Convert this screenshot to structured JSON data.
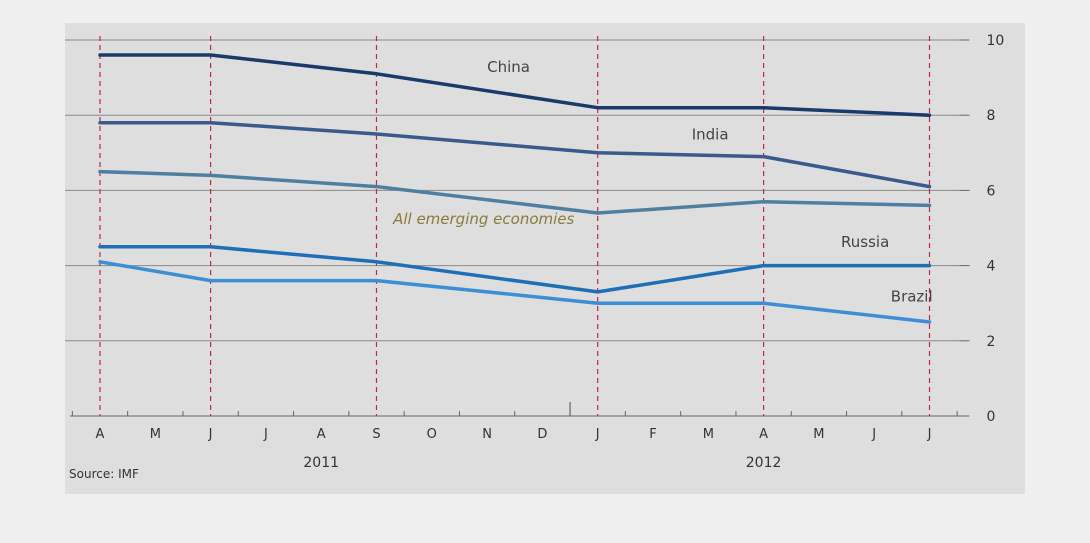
{
  "chart_data": {
    "type": "line",
    "title": "",
    "xlabel": "",
    "ylabel": "",
    "ylim": [
      0,
      10
    ],
    "yticks": [
      0,
      2,
      4,
      6,
      8,
      10
    ],
    "y_axis_side": "right",
    "months": [
      "A",
      "M",
      "J",
      "J",
      "A",
      "S",
      "O",
      "N",
      "D",
      "J",
      "F",
      "M",
      "A",
      "M",
      "J",
      "J"
    ],
    "years": [
      {
        "label": "2011",
        "month_index": 4
      },
      {
        "label": "2012",
        "month_index": 12
      }
    ],
    "forecast_markers": [
      0,
      2,
      5,
      9,
      12,
      15
    ],
    "year_divider_index": 8.5,
    "grid": true,
    "series": [
      {
        "name": "China",
        "color": "#1a3a6a",
        "points": [
          [
            0,
            9.6
          ],
          [
            2,
            9.6
          ],
          [
            5,
            9.1
          ],
          [
            9,
            8.2
          ],
          [
            12,
            8.2
          ],
          [
            15,
            8.0
          ]
        ]
      },
      {
        "name": "India",
        "color": "#3a5a8c",
        "points": [
          [
            0,
            7.8
          ],
          [
            2,
            7.8
          ],
          [
            5,
            7.5
          ],
          [
            9,
            7.0
          ],
          [
            12,
            6.9
          ],
          [
            15,
            6.1
          ]
        ]
      },
      {
        "name": "All emerging economies",
        "color": "#4f7fa0",
        "points": [
          [
            0,
            6.5
          ],
          [
            2,
            6.4
          ],
          [
            5,
            6.1
          ],
          [
            9,
            5.4
          ],
          [
            12,
            5.7
          ],
          [
            15,
            5.6
          ]
        ]
      },
      {
        "name": "Russia",
        "color": "#1f6fb8",
        "points": [
          [
            0,
            4.5
          ],
          [
            2,
            4.5
          ],
          [
            5,
            4.1
          ],
          [
            9,
            3.3
          ],
          [
            12,
            4.0
          ],
          [
            15,
            4.0
          ]
        ]
      },
      {
        "name": "Brazil",
        "color": "#3c8ed6",
        "points": [
          [
            0,
            4.1
          ],
          [
            2,
            3.6
          ],
          [
            5,
            3.6
          ],
          [
            9,
            3.0
          ],
          [
            12,
            3.0
          ],
          [
            15,
            2.5
          ]
        ]
      }
    ],
    "labels": [
      {
        "series": "China",
        "text": "China",
        "month_pos": 7.0,
        "value": 9.15,
        "italic": false
      },
      {
        "series": "India",
        "text": "India",
        "month_pos": 10.7,
        "value": 7.35,
        "italic": false
      },
      {
        "series": "All emerging economies",
        "text": "All emerging economies",
        "month_pos": 5.3,
        "value": 5.1,
        "italic": true
      },
      {
        "series": "Russia",
        "text": "Russia",
        "month_pos": 13.4,
        "value": 4.5,
        "italic": false
      },
      {
        "series": "Brazil",
        "text": "Brazil",
        "month_pos": 14.3,
        "value": 3.05,
        "italic": false
      }
    ],
    "source": "Source: IMF"
  }
}
